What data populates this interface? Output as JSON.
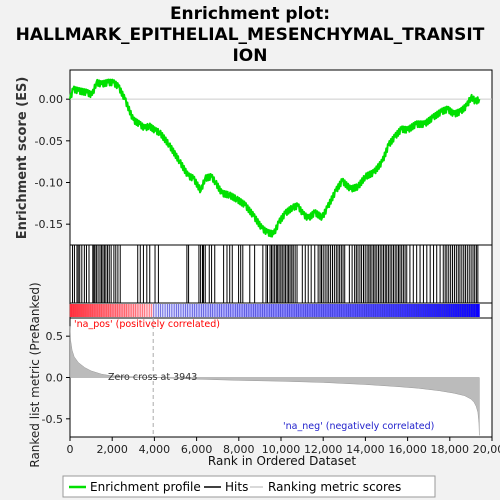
{
  "chart_data": {
    "type": "line",
    "title_lines": [
      "Enrichment plot:",
      "HALLMARK_EPITHELIAL_MESENCHYMAL_TRANSIT",
      "ION"
    ],
    "ylabel_top": "Enrichment score (ES)",
    "ylabel_bottom": "Ranked list metric (PreRanked)",
    "xlabel": "Rank in Ordered Dataset",
    "x_ticks": [
      0,
      2000,
      4000,
      6000,
      8000,
      10000,
      12000,
      14000,
      16000,
      18000,
      20000
    ],
    "x_tick_labels": [
      "0",
      "2,000",
      "4,000",
      "6,000",
      "8,000",
      "10,000",
      "12,000",
      "14,000",
      "16,000",
      "18,000",
      "20,000"
    ],
    "xlim": [
      0,
      20000
    ],
    "top_ylim": [
      -0.175,
      0.035
    ],
    "top_yticks": [
      0.0,
      -0.05,
      -0.1,
      -0.15
    ],
    "top_ytick_labels": [
      "0.00",
      "-0.05",
      "-0.10",
      "-0.15"
    ],
    "bottom_ylim": [
      -0.72,
      0.72
    ],
    "bottom_yticks": [
      0.5,
      0.0,
      -0.5
    ],
    "bottom_ytick_labels": [
      "0.5",
      "0.0",
      "-0.5"
    ],
    "n_genes": 19400,
    "zero_cross": 3943,
    "zero_cross_label": "Zero cross at 3943",
    "pos_label": "'na_pos' (positively correlated)",
    "neg_label": "'na_neg' (negatively correlated)",
    "es_series": {
      "name": "Enrichment profile",
      "x": [
        0,
        150,
        400,
        800,
        1050,
        1250,
        1500,
        1800,
        2050,
        2300,
        2600,
        3000,
        3300,
        3550,
        3750,
        4050,
        4250,
        4700,
        5200,
        5600,
        5850,
        6200,
        6400,
        6700,
        6900,
        7200,
        7550,
        7900,
        8300,
        8700,
        9100,
        9350,
        9650,
        9900,
        10200,
        10550,
        10800,
        11050,
        11300,
        11600,
        11950,
        12200,
        12600,
        12900,
        13300,
        13650,
        14000,
        14400,
        14800,
        15100,
        15400,
        15700,
        16000,
        16400,
        16800,
        17200,
        17600,
        17900,
        18200,
        18500,
        18800,
        19000,
        19100,
        19200,
        19400
      ],
      "y": [
        0.0,
        0.012,
        0.01,
        0.008,
        0.005,
        0.02,
        0.018,
        0.02,
        0.02,
        0.015,
        0.0,
        -0.025,
        -0.03,
        -0.035,
        -0.032,
        -0.038,
        -0.04,
        -0.055,
        -0.075,
        -0.092,
        -0.095,
        -0.11,
        -0.095,
        -0.093,
        -0.1,
        -0.113,
        -0.115,
        -0.12,
        -0.127,
        -0.14,
        -0.155,
        -0.16,
        -0.162,
        -0.148,
        -0.137,
        -0.13,
        -0.128,
        -0.138,
        -0.143,
        -0.136,
        -0.142,
        -0.13,
        -0.11,
        -0.098,
        -0.108,
        -0.105,
        -0.093,
        -0.088,
        -0.075,
        -0.055,
        -0.045,
        -0.036,
        -0.037,
        -0.03,
        -0.03,
        -0.022,
        -0.015,
        -0.012,
        -0.018,
        -0.015,
        -0.008,
        0.002,
        0.001,
        -0.003,
        0.0
      ]
    },
    "hits": [
      120,
      210,
      330,
      390,
      460,
      560,
      680,
      780,
      900,
      1080,
      1130,
      1180,
      1250,
      1330,
      1420,
      1490,
      1560,
      1630,
      1700,
      1780,
      1860,
      1950,
      2080,
      2170,
      2270,
      2380,
      3210,
      3330,
      3480,
      3640,
      3780,
      4030,
      4190,
      5540,
      5620,
      6110,
      6190,
      6280,
      6330,
      6410,
      6600,
      6710,
      6860,
      7280,
      7440,
      7570,
      7690,
      7990,
      8090,
      8190,
      8520,
      8750,
      9140,
      9290,
      9360,
      9480,
      9550,
      9620,
      9700,
      9780,
      9840,
      9910,
      9990,
      10060,
      10140,
      10210,
      10290,
      10360,
      10430,
      10510,
      10580,
      10670,
      10760,
      11010,
      11150,
      11290,
      11430,
      11600,
      11760,
      11850,
      11920,
      12000,
      12090,
      12180,
      12260,
      12350,
      12440,
      12530,
      12620,
      12700,
      12780,
      12860,
      12940,
      13020,
      13240,
      13370,
      13490,
      13570,
      13650,
      13740,
      13820,
      13910,
      13990,
      14080,
      14160,
      14230,
      14310,
      14390,
      14460,
      14540,
      14620,
      14700,
      14780,
      14860,
      14940,
      15010,
      15090,
      15170,
      15250,
      15330,
      15410,
      15490,
      15570,
      15640,
      15720,
      15800,
      15880,
      15960,
      16110,
      16270,
      16430,
      16590,
      16750,
      16910,
      17070,
      17230,
      17380,
      17540,
      17690,
      17780,
      17860,
      17950,
      18040,
      18130,
      18220,
      18310,
      18400,
      18480,
      18570,
      18660,
      18740,
      18830,
      18920,
      19010,
      19100,
      19180,
      19260,
      19330
    ],
    "metric_curve": {
      "name": "Ranking metric scores",
      "x": [
        0,
        30,
        100,
        200,
        400,
        700,
        1000,
        1500,
        2000,
        3000,
        3943,
        6000,
        8000,
        10000,
        12000,
        14000,
        15500,
        16500,
        17500,
        18200,
        18700,
        19000,
        19150,
        19250,
        19330,
        19380,
        19400
      ],
      "y": [
        0.62,
        0.45,
        0.33,
        0.25,
        0.18,
        0.12,
        0.08,
        0.04,
        0.02,
        0.008,
        0.0,
        -0.02,
        -0.035,
        -0.045,
        -0.06,
        -0.085,
        -0.11,
        -0.13,
        -0.16,
        -0.19,
        -0.22,
        -0.26,
        -0.3,
        -0.35,
        -0.42,
        -0.55,
        -0.7
      ]
    },
    "legend": [
      "Enrichment profile",
      "Hits",
      "Ranking metric scores"
    ],
    "colors": {
      "es_line": "#00e000",
      "hits": "#000000",
      "metric_fill": "#bbbbbb",
      "pos_label": "#ff0000",
      "neg_label": "#2222cc",
      "zero_line": "#aaaaaa"
    }
  }
}
